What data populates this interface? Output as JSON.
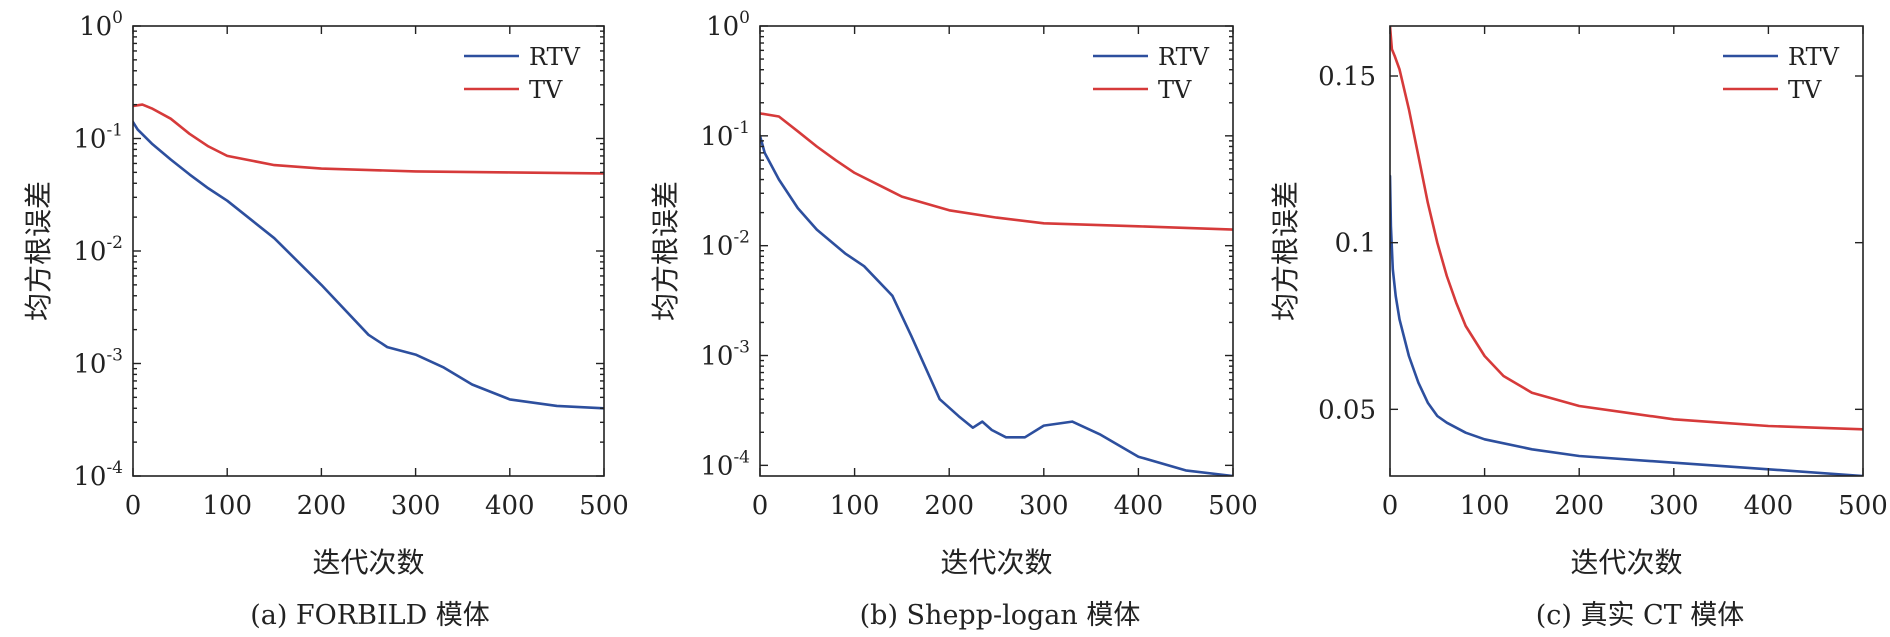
{
  "colors": {
    "RTV": "#2d4f9e",
    "TV": "#d63a3a"
  },
  "chart_data": [
    {
      "type": "line",
      "caption": "(a) FORBILD 模体",
      "xlabel": "迭代次数",
      "ylabel": "均方根误差",
      "yscale": "log",
      "xlim": [
        0,
        500
      ],
      "ylim": [
        0.0001,
        1
      ],
      "xticks": [
        "0",
        "100",
        "200",
        "300",
        "400",
        "500"
      ],
      "yticks": [
        {
          "base": "10",
          "exp": "0"
        },
        {
          "base": "10",
          "exp": "-1"
        },
        {
          "base": "10",
          "exp": "-2"
        },
        {
          "base": "10",
          "exp": "-3"
        },
        {
          "base": "10",
          "exp": "-4"
        }
      ],
      "legend_position": "top-right",
      "series": [
        {
          "name": "RTV",
          "color": "#2d4f9e",
          "x": [
            0,
            5,
            20,
            40,
            60,
            80,
            100,
            150,
            200,
            250,
            270,
            300,
            330,
            360,
            400,
            450,
            500
          ],
          "y": [
            0.14,
            0.12,
            0.09,
            0.065,
            0.048,
            0.036,
            0.028,
            0.013,
            0.005,
            0.0018,
            0.0014,
            0.0012,
            0.00092,
            0.00065,
            0.00048,
            0.00042,
            0.0004
          ]
        },
        {
          "name": "TV",
          "color": "#d63a3a",
          "x": [
            0,
            10,
            20,
            40,
            60,
            80,
            100,
            150,
            200,
            300,
            400,
            500
          ],
          "y": [
            0.195,
            0.2,
            0.185,
            0.15,
            0.11,
            0.085,
            0.07,
            0.058,
            0.054,
            0.051,
            0.05,
            0.049
          ]
        }
      ]
    },
    {
      "type": "line",
      "caption": "(b) Shepp-logan 模体",
      "xlabel": "迭代次数",
      "ylabel": "均方根误差",
      "yscale": "log",
      "xlim": [
        0,
        500
      ],
      "ylim": [
        8e-05,
        1
      ],
      "xticks": [
        "0",
        "100",
        "200",
        "300",
        "400",
        "500"
      ],
      "yticks": [
        {
          "base": "10",
          "exp": "0"
        },
        {
          "base": "10",
          "exp": "-1"
        },
        {
          "base": "10",
          "exp": "-2"
        },
        {
          "base": "10",
          "exp": "-3"
        },
        {
          "base": "10",
          "exp": "-4"
        }
      ],
      "legend_position": "top-right",
      "series": [
        {
          "name": "RTV",
          "color": "#2d4f9e",
          "x": [
            0,
            5,
            20,
            40,
            60,
            90,
            110,
            140,
            160,
            190,
            210,
            225,
            235,
            245,
            260,
            280,
            300,
            330,
            360,
            400,
            450,
            500
          ],
          "y": [
            0.1,
            0.07,
            0.04,
            0.022,
            0.014,
            0.0085,
            0.0065,
            0.0035,
            0.0015,
            0.0004,
            0.00028,
            0.00022,
            0.00025,
            0.00021,
            0.00018,
            0.00018,
            0.00023,
            0.00025,
            0.00019,
            0.00012,
            9e-05,
            8e-05
          ]
        },
        {
          "name": "TV",
          "color": "#d63a3a",
          "x": [
            0,
            20,
            40,
            60,
            80,
            100,
            150,
            200,
            250,
            300,
            400,
            500
          ],
          "y": [
            0.16,
            0.15,
            0.11,
            0.08,
            0.06,
            0.046,
            0.028,
            0.021,
            0.018,
            0.016,
            0.015,
            0.014
          ]
        }
      ]
    },
    {
      "type": "line",
      "caption": "(c) 真实 CT 模体",
      "xlabel": "迭代次数",
      "ylabel": "均方根误差",
      "yscale": "linear",
      "xlim": [
        0,
        500
      ],
      "ylim": [
        0.03,
        0.165
      ],
      "xticks": [
        "0",
        "100",
        "200",
        "300",
        "400",
        "500"
      ],
      "yticks": [
        {
          "value": 0.15,
          "label": "0.15"
        },
        {
          "value": 0.1,
          "label": "0.1"
        },
        {
          "value": 0.05,
          "label": "0.05"
        }
      ],
      "legend_position": "top-right",
      "series": [
        {
          "name": "RTV",
          "color": "#2d4f9e",
          "x": [
            0,
            1,
            3,
            6,
            10,
            20,
            30,
            40,
            50,
            60,
            80,
            100,
            150,
            200,
            300,
            400,
            500
          ],
          "y": [
            0.12,
            0.105,
            0.092,
            0.084,
            0.077,
            0.066,
            0.058,
            0.052,
            0.048,
            0.046,
            0.043,
            0.041,
            0.038,
            0.036,
            0.034,
            0.032,
            0.03
          ]
        },
        {
          "name": "TV",
          "color": "#d63a3a",
          "x": [
            0,
            2,
            5,
            10,
            20,
            30,
            40,
            50,
            60,
            70,
            80,
            100,
            120,
            150,
            200,
            250,
            300,
            350,
            400,
            450,
            500
          ],
          "y": [
            0.165,
            0.158,
            0.156,
            0.152,
            0.14,
            0.126,
            0.112,
            0.1,
            0.09,
            0.082,
            0.075,
            0.066,
            0.06,
            0.055,
            0.051,
            0.049,
            0.047,
            0.046,
            0.045,
            0.0445,
            0.044
          ]
        }
      ]
    }
  ]
}
